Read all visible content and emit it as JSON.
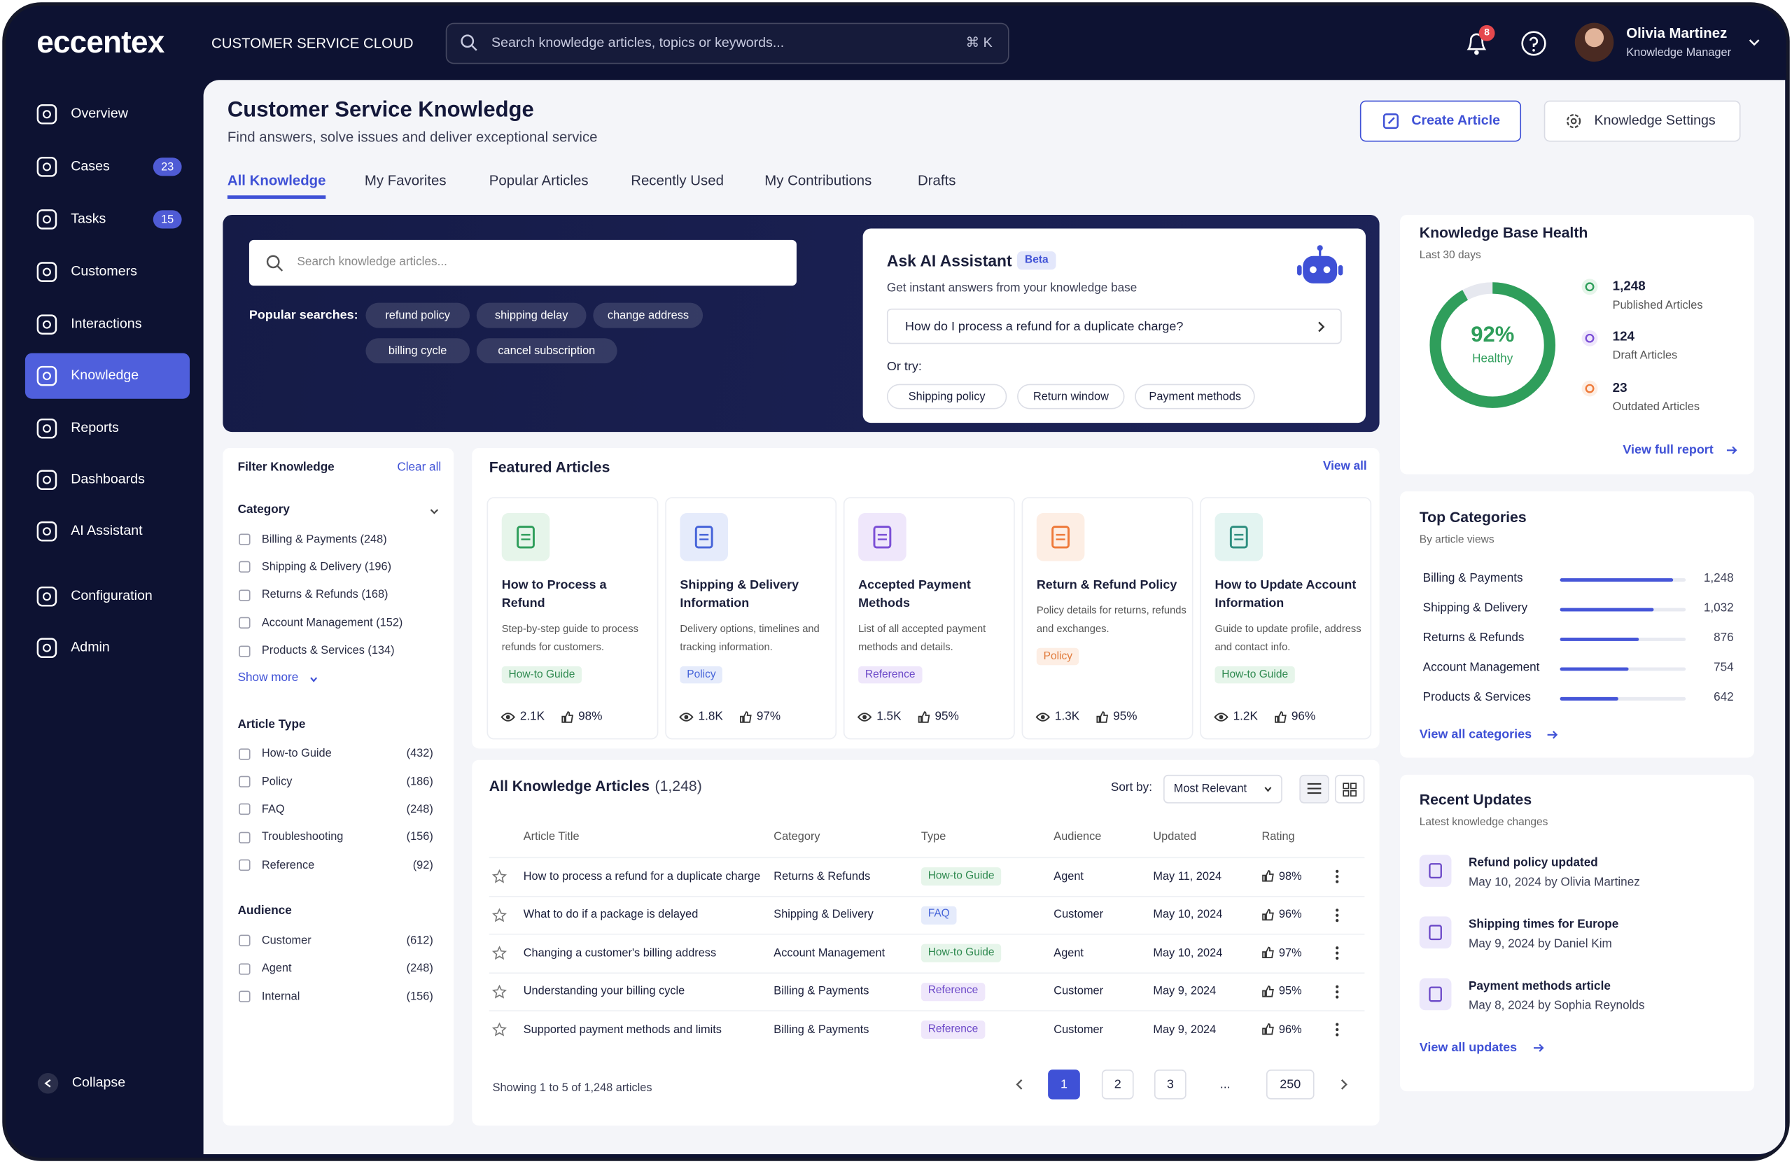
{
  "app": {
    "brand": "eccentex",
    "product": "CUSTOMER SERVICE CLOUD",
    "search_placeholder": "Search knowledge articles, topics or keywords...",
    "shortcut": "⌘ K",
    "notifications": "8",
    "user": {
      "name": "Olivia Martinez",
      "role": "Knowledge Manager"
    }
  },
  "nav": [
    {
      "label": "Overview"
    },
    {
      "label": "Cases",
      "badge": "23"
    },
    {
      "label": "Tasks",
      "badge": "15"
    },
    {
      "label": "Customers"
    },
    {
      "label": "Interactions"
    },
    {
      "label": "Knowledge"
    },
    {
      "label": "Reports"
    },
    {
      "label": "Dashboards"
    },
    {
      "label": "AI Assistant"
    },
    {
      "label": "Configuration"
    },
    {
      "label": "Admin"
    }
  ],
  "collapse": "Collapse",
  "header": {
    "title": "Customer Service Knowledge",
    "subtitle": "Find answers, solve issues and deliver exceptional service",
    "create": "Create Article",
    "settings": "Knowledge Settings"
  },
  "tabs": [
    "All Knowledge",
    "My Favorites",
    "Popular Articles",
    "Recently Used",
    "My Contributions",
    "Drafts"
  ],
  "hero": {
    "search_placeholder": "Search knowledge articles...",
    "popular_label": "Popular searches:",
    "popular": [
      "refund policy",
      "shipping delay",
      "change address",
      "billing cycle",
      "cancel subscription"
    ],
    "ai": {
      "title": "Ask AI Assistant",
      "badge": "Beta",
      "subtitle": "Get instant answers from your knowledge base",
      "question": "How do I process a refund for a duplicate charge?",
      "or_try": "Or try:",
      "suggestions": [
        "Shipping policy",
        "Return window",
        "Payment methods"
      ]
    }
  },
  "filters": {
    "title": "Filter Knowledge",
    "clear": "Clear all",
    "groups": [
      {
        "title": "Category",
        "options": [
          {
            "label": "Billing & Payments (248)"
          },
          {
            "label": "Shipping & Delivery (196)"
          },
          {
            "label": "Returns & Refunds (168)"
          },
          {
            "label": "Account Management (152)"
          },
          {
            "label": "Products & Services (134)"
          }
        ],
        "more": "Show more"
      },
      {
        "title": "Article Type",
        "options": [
          {
            "label": "How-to Guide",
            "count": "(432)"
          },
          {
            "label": "Policy",
            "count": "(186)"
          },
          {
            "label": "FAQ",
            "count": "(248)"
          },
          {
            "label": "Troubleshooting",
            "count": "(156)"
          },
          {
            "label": "Reference",
            "count": "(92)"
          }
        ]
      },
      {
        "title": "Audience",
        "options": [
          {
            "label": "Customer",
            "count": "(612)"
          },
          {
            "label": "Agent",
            "count": "(248)"
          },
          {
            "label": "Internal",
            "count": "(156)"
          }
        ]
      }
    ]
  },
  "featured": {
    "title": "Featured Articles",
    "view_all": "View all",
    "articles": [
      {
        "title": "How to Process a Refund",
        "desc": "Step-by-step guide to process refunds for customers.",
        "tag": "How-to Guide",
        "views": "2.1K",
        "rating": "98%"
      },
      {
        "title": "Shipping & Delivery Information",
        "desc": "Delivery options, timelines and tracking information.",
        "tag": "Policy",
        "views": "1.8K",
        "rating": "97%"
      },
      {
        "title": "Accepted Payment Methods",
        "desc": "List of all accepted payment methods and details.",
        "tag": "Reference",
        "views": "1.5K",
        "rating": "95%"
      },
      {
        "title": "Return & Refund Policy",
        "desc": "Policy details for returns, refunds and exchanges.",
        "tag": "Policy",
        "views": "1.3K",
        "rating": "95%"
      },
      {
        "title": "How to Update Account Information",
        "desc": "Guide to update profile, address and contact info.",
        "tag": "How-to Guide",
        "views": "1.2K",
        "rating": "96%"
      }
    ]
  },
  "articles": {
    "title": "All Knowledge Articles",
    "count": "(1,248)",
    "sort_label": "Sort by:",
    "sort": "Most Relevant",
    "columns": [
      "Article Title",
      "Category",
      "Type",
      "Audience",
      "Updated",
      "Rating"
    ],
    "rows": [
      [
        "How to process a refund for a duplicate charge",
        "Returns & Refunds",
        "How-to Guide",
        "Agent",
        "May 11, 2024",
        "98%"
      ],
      [
        "What to do if a package is delayed",
        "Shipping & Delivery",
        "FAQ",
        "Customer",
        "May 10, 2024",
        "96%"
      ],
      [
        "Changing a customer's billing address",
        "Account Management",
        "How-to Guide",
        "Agent",
        "May 10, 2024",
        "97%"
      ],
      [
        "Understanding your billing cycle",
        "Billing & Payments",
        "Reference",
        "Customer",
        "May 9, 2024",
        "95%"
      ],
      [
        "Supported payment methods and limits",
        "Billing & Payments",
        "Reference",
        "Customer",
        "May 9, 2024",
        "96%"
      ]
    ],
    "showing": "Showing 1 to 5 of 1,248 articles",
    "pages": [
      "1",
      "2",
      "3",
      "...",
      "250"
    ]
  },
  "health": {
    "title": "Knowledge Base Health",
    "period": "Last 30 days",
    "score": 92,
    "score_label": "92%",
    "status": "Healthy",
    "stats": [
      {
        "value": "1,248",
        "label": "Published Articles"
      },
      {
        "value": "124",
        "label": "Draft Articles"
      },
      {
        "value": "23",
        "label": "Outdated Articles"
      }
    ],
    "link": "View full report"
  },
  "top_categories": {
    "title": "Top Categories",
    "subtitle": "By article views",
    "items": [
      {
        "name": "Billing & Payments",
        "value": 1248,
        "value_label": "1,248"
      },
      {
        "name": "Shipping & Delivery",
        "value": 1032,
        "value_label": "1,032"
      },
      {
        "name": "Returns & Refunds",
        "value": 876,
        "value_label": "876"
      },
      {
        "name": "Account Management",
        "value": 754,
        "value_label": "754"
      },
      {
        "name": "Products & Services",
        "value": 642,
        "value_label": "642"
      }
    ],
    "link": "View all categories"
  },
  "recent": {
    "title": "Recent Updates",
    "subtitle": "Latest knowledge changes",
    "items": [
      {
        "title": "Refund policy updated",
        "meta": "May 10, 2024 by Olivia Martinez"
      },
      {
        "title": "Shipping times for Europe",
        "meta": "May 9, 2024 by Daniel Kim"
      },
      {
        "title": "Payment methods article",
        "meta": "May 8, 2024 by Sophia Reynolds"
      }
    ],
    "link": "View all updates"
  }
}
